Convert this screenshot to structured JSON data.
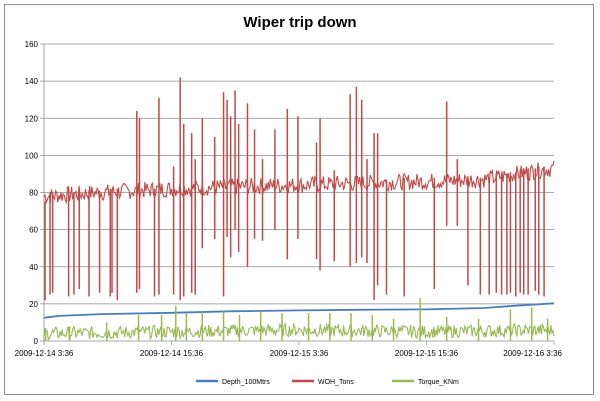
{
  "chart_data": {
    "type": "line",
    "title": "Wiper trip down",
    "xlabel": "",
    "ylabel": "",
    "ylim": [
      0,
      160
    ],
    "yticks": [
      0,
      20,
      40,
      60,
      80,
      100,
      120,
      140,
      160
    ],
    "x_start": "2009-12-14 03:36",
    "x_end": "2009-12-16 03:36",
    "xtick_labels": [
      "2009-12-14  3:36",
      "2009-12-14  15:36",
      "2009-12-15  3:36",
      "2009-12-15  15:36",
      "2009-12-16  3:36"
    ],
    "grid": "horizontal",
    "legend_position": "bottom",
    "series": [
      {
        "name": "Depth_100Mtrs",
        "color": "#4a7ebb",
        "points": [
          [
            "2009-12-14 03:36",
            12.5
          ],
          [
            "2009-12-14 05:00",
            13.5
          ],
          [
            "2009-12-14 09:00",
            14.5
          ],
          [
            "2009-12-14 15:36",
            15.2
          ],
          [
            "2009-12-14 21:00",
            16.0
          ],
          [
            "2009-12-15 03:36",
            16.5
          ],
          [
            "2009-12-15 09:00",
            16.8
          ],
          [
            "2009-12-15 15:36",
            17.0
          ],
          [
            "2009-12-15 21:00",
            17.8
          ],
          [
            "2009-12-16 00:00",
            19.0
          ],
          [
            "2009-12-16 03:36",
            20.3
          ]
        ]
      },
      {
        "name": "WOH_Tons",
        "color": "#be4b48",
        "baseline": [
          [
            "2009-12-14 03:36",
            78
          ],
          [
            "2009-12-14 09:00",
            80
          ],
          [
            "2009-12-14 15:36",
            82
          ],
          [
            "2009-12-14 21:00",
            83
          ],
          [
            "2009-12-15 03:36",
            84
          ],
          [
            "2009-12-15 09:00",
            85
          ],
          [
            "2009-12-15 15:36",
            86
          ],
          [
            "2009-12-15 21:00",
            87
          ],
          [
            "2009-12-16 00:00",
            90
          ],
          [
            "2009-12-16 03:36",
            93
          ]
        ],
        "spikes": [
          [
            "2009-12-14 03:42",
            75,
            22
          ],
          [
            "2009-12-14 04:10",
            80,
            25
          ],
          [
            "2009-12-14 04:25",
            80,
            26
          ],
          [
            "2009-12-14 05:55",
            82,
            24
          ],
          [
            "2009-12-14 06:25",
            80,
            25
          ],
          [
            "2009-12-14 06:55",
            81,
            28
          ],
          [
            "2009-12-14 07:50",
            81,
            24
          ],
          [
            "2009-12-14 08:50",
            81,
            26
          ],
          [
            "2009-12-14 09:50",
            82,
            24
          ],
          [
            "2009-12-14 10:00",
            82,
            26
          ],
          [
            "2009-12-14 10:30",
            82,
            22
          ],
          [
            "2009-12-14 12:20",
            124,
            26
          ],
          [
            "2009-12-14 12:35",
            120,
            28
          ],
          [
            "2009-12-14 14:00",
            82,
            24
          ],
          [
            "2009-12-14 14:25",
            131,
            25
          ],
          [
            "2009-12-14 15:48",
            94,
            25
          ],
          [
            "2009-12-14 16:25",
            142,
            22
          ],
          [
            "2009-12-14 16:45",
            117,
            24
          ],
          [
            "2009-12-14 17:30",
            112,
            26
          ],
          [
            "2009-12-14 17:50",
            98,
            25
          ],
          [
            "2009-12-14 18:30",
            120,
            50
          ],
          [
            "2009-12-14 19:40",
            110,
            55
          ],
          [
            "2009-12-14 20:30",
            134,
            24
          ],
          [
            "2009-12-14 20:50",
            130,
            56
          ],
          [
            "2009-12-14 21:10",
            121,
            45
          ],
          [
            "2009-12-14 21:35",
            135,
            60
          ],
          [
            "2009-12-14 21:55",
            117,
            48
          ],
          [
            "2009-12-14 22:45",
            128,
            40
          ],
          [
            "2009-12-14 23:25",
            114,
            55
          ],
          [
            "2009-12-15 00:10",
            98,
            54
          ],
          [
            "2009-12-15 01:20",
            114,
            60
          ],
          [
            "2009-12-15 02:30",
            125,
            44
          ],
          [
            "2009-12-15 03:30",
            121,
            55
          ],
          [
            "2009-12-15 05:15",
            107,
            44
          ],
          [
            "2009-12-15 05:35",
            120,
            38
          ],
          [
            "2009-12-15 06:55",
            92,
            43
          ],
          [
            "2009-12-15 08:25",
            133,
            40
          ],
          [
            "2009-12-15 09:00",
            137,
            42
          ],
          [
            "2009-12-15 09:30",
            130,
            45
          ],
          [
            "2009-12-15 10:00",
            98,
            42
          ],
          [
            "2009-12-15 10:40",
            112,
            22
          ],
          [
            "2009-12-15 11:00",
            112,
            30
          ],
          [
            "2009-12-15 11:50",
            87,
            25
          ],
          [
            "2009-12-15 13:30",
            88,
            24
          ],
          [
            "2009-12-15 16:20",
            88,
            28
          ],
          [
            "2009-12-15 17:30",
            129,
            62
          ],
          [
            "2009-12-15 18:30",
            98,
            62
          ],
          [
            "2009-12-15 19:30",
            87,
            30
          ],
          [
            "2009-12-15 20:40",
            88,
            25
          ],
          [
            "2009-12-15 21:30",
            88,
            25
          ],
          [
            "2009-12-15 22:10",
            90,
            26
          ],
          [
            "2009-12-15 22:40",
            90,
            25
          ],
          [
            "2009-12-15 23:10",
            90,
            25
          ],
          [
            "2009-12-15 23:30",
            91,
            26
          ],
          [
            "2009-12-16 00:00",
            91,
            24
          ],
          [
            "2009-12-16 00:25",
            92,
            26
          ],
          [
            "2009-12-16 00:45",
            93,
            25
          ],
          [
            "2009-12-16 01:10",
            93,
            25
          ],
          [
            "2009-12-16 01:50",
            93,
            27
          ],
          [
            "2009-12-16 02:10",
            94,
            25
          ],
          [
            "2009-12-16 02:40",
            94,
            24
          ]
        ]
      },
      {
        "name": "Torque_KNm",
        "color": "#98b954",
        "baseline": [
          [
            "2009-12-14 03:36",
            4
          ],
          [
            "2009-12-14 15:36",
            5
          ],
          [
            "2009-12-15 03:36",
            6
          ],
          [
            "2009-12-15 15:36",
            5
          ],
          [
            "2009-12-16 03:36",
            6
          ]
        ],
        "spikes": [
          [
            "2009-12-14 03:45",
            0,
            7
          ],
          [
            "2009-12-14 06:00",
            0,
            8
          ],
          [
            "2009-12-14 09:30",
            0,
            10
          ],
          [
            "2009-12-14 12:30",
            0,
            14
          ],
          [
            "2009-12-14 14:40",
            0,
            14
          ],
          [
            "2009-12-14 16:00",
            0,
            19
          ],
          [
            "2009-12-14 17:00",
            0,
            15
          ],
          [
            "2009-12-14 18:30",
            0,
            16
          ],
          [
            "2009-12-14 20:30",
            0,
            16
          ],
          [
            "2009-12-14 22:00",
            0,
            14
          ],
          [
            "2009-12-15 00:00",
            0,
            16
          ],
          [
            "2009-12-15 02:00",
            0,
            15
          ],
          [
            "2009-12-15 04:30",
            0,
            15
          ],
          [
            "2009-12-15 06:30",
            0,
            15
          ],
          [
            "2009-12-15 08:30",
            0,
            15
          ],
          [
            "2009-12-15 10:30",
            0,
            14
          ],
          [
            "2009-12-15 12:30",
            0,
            12
          ],
          [
            "2009-12-15 15:00",
            0,
            23
          ],
          [
            "2009-12-15 17:30",
            0,
            13
          ],
          [
            "2009-12-15 20:30",
            0,
            12
          ],
          [
            "2009-12-15 23:30",
            0,
            17
          ],
          [
            "2009-12-16 01:30",
            0,
            18
          ],
          [
            "2009-12-16 03:00",
            0,
            12
          ]
        ]
      }
    ]
  }
}
